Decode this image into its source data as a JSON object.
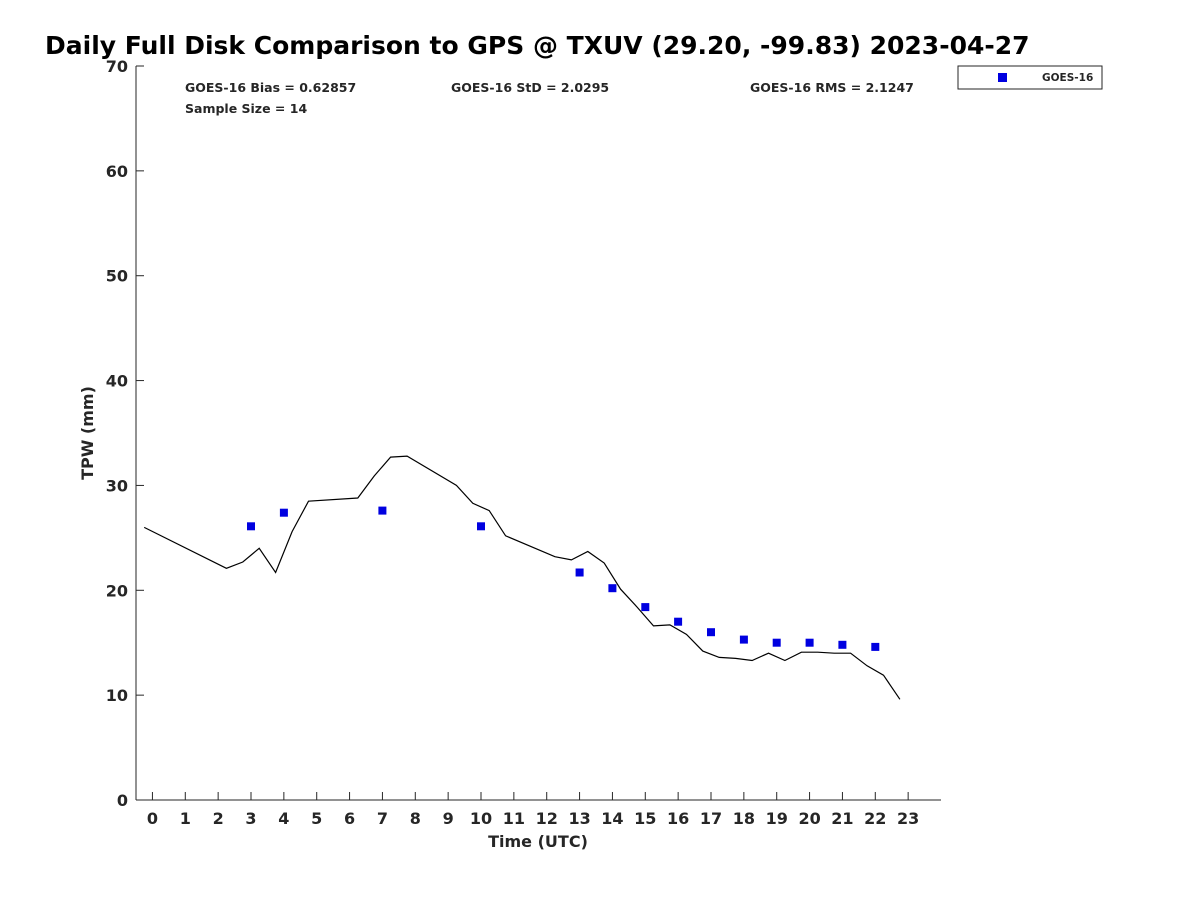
{
  "chart_data": {
    "type": "scatter",
    "title": "Daily Full Disk Comparison to GPS @ TXUV (29.20, -99.83) 2023-04-27",
    "xlabel": "Time (UTC)",
    "ylabel": "TPW (mm)",
    "xlim": [
      -0.5,
      24
    ],
    "ylim": [
      0,
      70
    ],
    "x_ticks": [
      0,
      1,
      2,
      3,
      4,
      5,
      6,
      7,
      8,
      9,
      10,
      11,
      12,
      13,
      14,
      15,
      16,
      17,
      18,
      19,
      20,
      21,
      22,
      23
    ],
    "x_tick_labels": [
      "0",
      "1",
      "2",
      "3",
      "4",
      "5",
      "6",
      "7",
      "8",
      "9",
      "10",
      "11",
      "12",
      "13",
      "14",
      "15",
      "16",
      "17",
      "18",
      "19",
      "20",
      "21",
      "22",
      "23"
    ],
    "y_ticks": [
      0,
      10,
      20,
      30,
      40,
      50,
      60,
      70
    ],
    "y_tick_labels": [
      "0",
      "10",
      "20",
      "30",
      "40",
      "50",
      "60",
      "70"
    ],
    "grid": false,
    "legend_position": "top-right outside",
    "stats": {
      "bias": "GOES-16 Bias = 0.62857",
      "std": "GOES-16 StD = 2.0295",
      "rms": "GOES-16 RMS = 2.1247",
      "sample_size": "Sample Size = 14"
    },
    "series": [
      {
        "name": "GOES-16",
        "type": "scatter",
        "color": "#0000e0",
        "marker": "square",
        "x": [
          3,
          4,
          7,
          10,
          13,
          14,
          15,
          16,
          17,
          18,
          19,
          20,
          21,
          22
        ],
        "y": [
          26.1,
          27.4,
          27.6,
          26.1,
          21.7,
          20.2,
          18.4,
          17.0,
          16.0,
          15.3,
          15.0,
          15.0,
          14.8,
          14.6
        ]
      },
      {
        "type": "line",
        "color": "#000000",
        "x": [
          -0.25,
          2.25,
          2.75,
          3.25,
          3.75,
          4.25,
          4.75,
          6.25,
          6.75,
          7.25,
          7.75,
          9.25,
          9.75,
          10.25,
          10.75,
          12.25,
          12.75,
          13.25,
          13.75,
          14.25,
          14.75,
          15.25,
          15.75,
          16.25,
          16.75,
          17.25,
          17.75,
          18.25,
          18.75,
          19.25,
          19.75,
          20.25,
          20.75,
          21.25,
          21.75,
          22.25,
          22.75
        ],
        "y": [
          26.0,
          22.1,
          22.7,
          24.0,
          21.7,
          25.6,
          28.5,
          28.8,
          30.9,
          32.7,
          32.8,
          30.0,
          28.3,
          27.6,
          25.2,
          23.2,
          22.9,
          23.7,
          22.6,
          20.1,
          18.4,
          16.6,
          16.7,
          15.8,
          14.2,
          13.6,
          13.5,
          13.3,
          14.0,
          13.3,
          14.1,
          14.1,
          14.0,
          14.0,
          12.8,
          11.9,
          9.6
        ]
      }
    ]
  }
}
